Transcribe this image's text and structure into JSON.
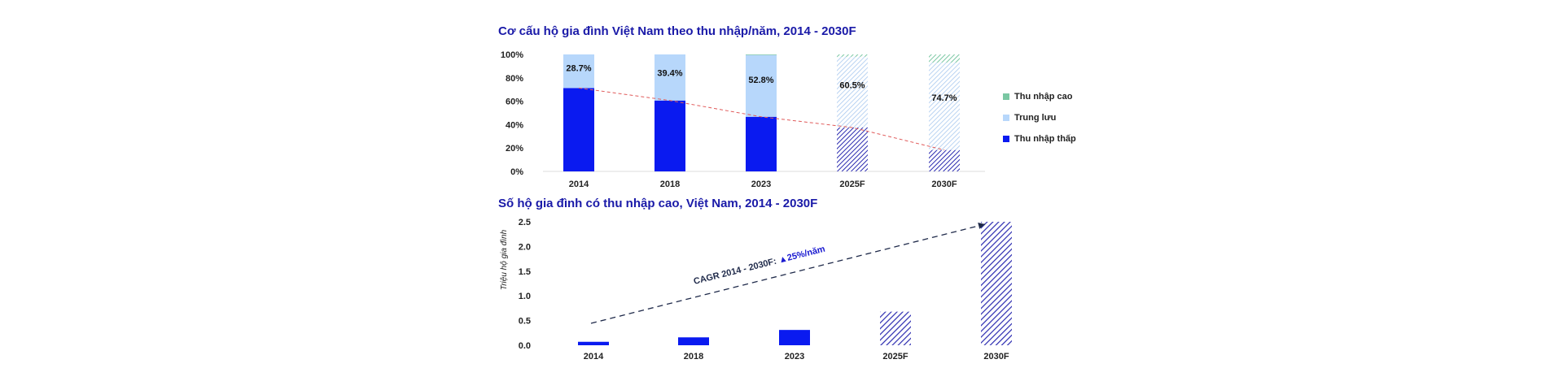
{
  "chart_data": [
    {
      "type": "bar",
      "stacked": true,
      "title": "Cơ cấu hộ gia đình Việt Nam theo thu nhập/năm, 2014 - 2030F",
      "categories": [
        "2014",
        "2018",
        "2023",
        "2025F",
        "2030F"
      ],
      "forecast_categories": [
        "2025F",
        "2030F"
      ],
      "yticks": [
        "100%",
        "80%",
        "60%",
        "40%",
        "20%",
        "0%"
      ],
      "ylim": [
        0,
        100
      ],
      "series": [
        {
          "name": "Thu nhập thấp",
          "color": "#0a1af0",
          "values": [
            71.3,
            60.6,
            46.7,
            37.5,
            18.3
          ]
        },
        {
          "name": "Trung lưu",
          "color": "#b7d7fb",
          "values": [
            28.7,
            39.4,
            52.8,
            60.5,
            74.7
          ],
          "labels": [
            "28.7%",
            "39.4%",
            "52.8%",
            "60.5%",
            "74.7%"
          ]
        },
        {
          "name": "Thu nhập cao",
          "color": "#7ac7a3",
          "values": [
            0.0,
            0.0,
            0.5,
            2.0,
            7.0
          ]
        }
      ],
      "trend_line": "dashed red through top of Thu nhập thấp",
      "legend": "right",
      "legend_order": [
        "Thu nhập cao",
        "Trung lưu",
        "Thu nhập thấp"
      ]
    },
    {
      "type": "bar",
      "title": "Số hộ gia đình có thu nhập cao, Việt Nam, 2014 - 2030F",
      "ylabel": "Triệu hộ gia đình",
      "categories": [
        "2014",
        "2018",
        "2023",
        "2025F",
        "2030F"
      ],
      "forecast_categories": [
        "2025F",
        "2030F"
      ],
      "values": [
        0.07,
        0.16,
        0.31,
        0.68,
        2.5
      ],
      "color": "#0a1af0",
      "yticks": [
        "2.5",
        "2.0",
        "1.5",
        "1.0",
        "0.5",
        "0.0"
      ],
      "ylim": [
        0,
        2.5
      ],
      "annotation": {
        "prefix": "CAGR 2014 - 2030F:",
        "value": "▲25%/năm"
      }
    }
  ]
}
